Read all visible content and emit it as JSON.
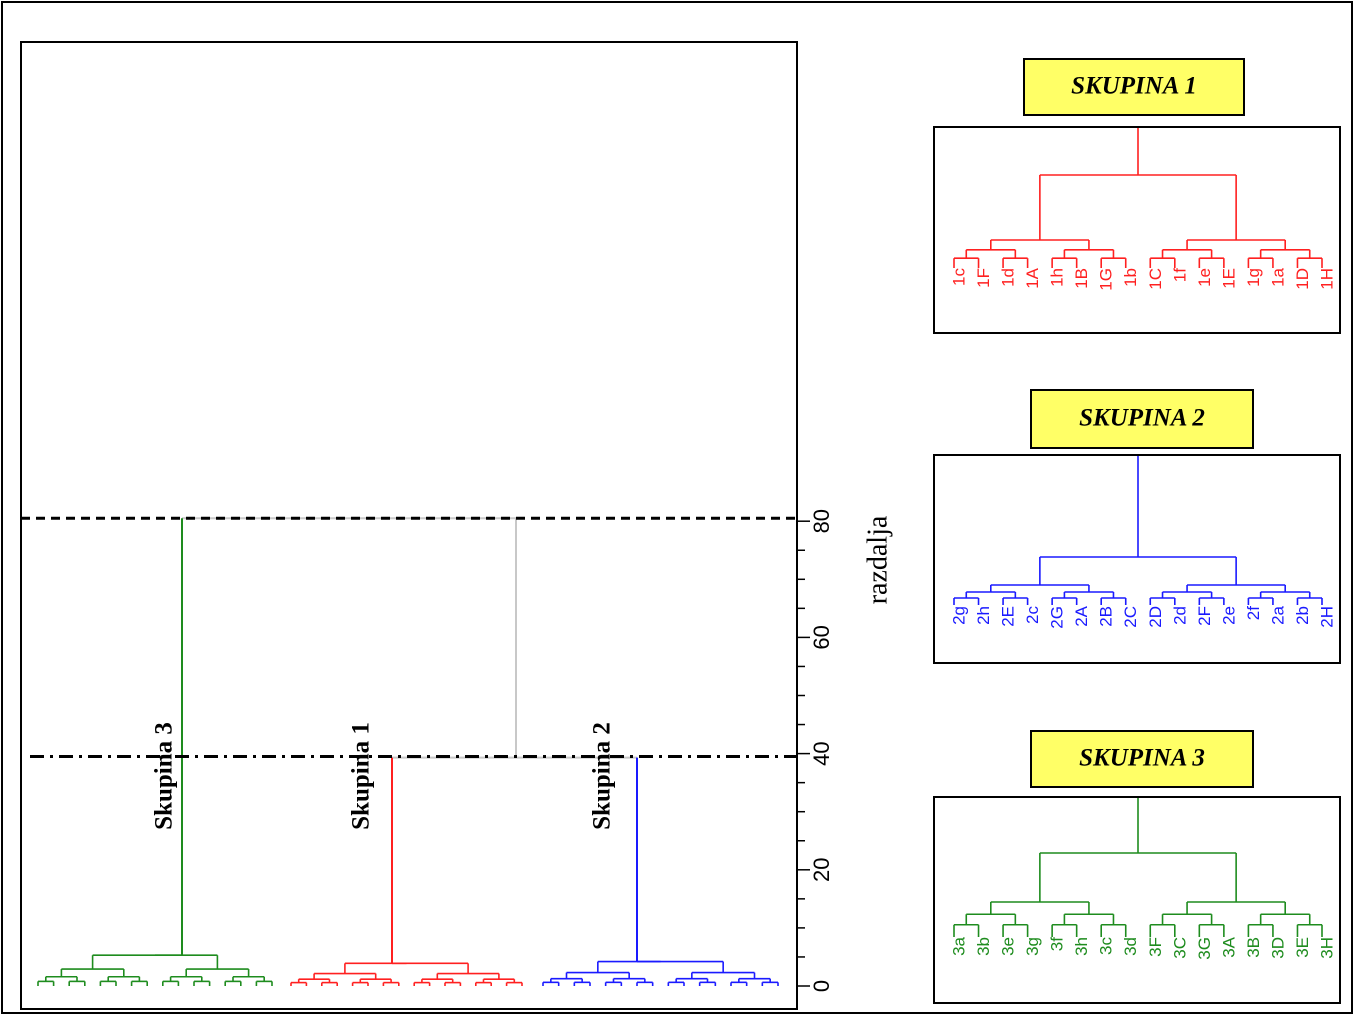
{
  "chart_data": {
    "type": "dendrogram",
    "y_axis": {
      "label": "razdalja",
      "ticks": [
        0,
        20,
        40,
        60,
        80
      ],
      "range": [
        0,
        81
      ]
    },
    "cut_lines": [
      {
        "style": "dashed",
        "value": 80.5
      },
      {
        "style": "dash-dot",
        "value": 39.5
      }
    ],
    "main": {
      "root_height": 80.5,
      "inner_merge_height": 39.3,
      "clusters": [
        {
          "label": "Skupina 3",
          "color": "#1e8c1e",
          "height": 5.3
        },
        {
          "label": "Skupina 1",
          "color": "#ff2020",
          "height": 3.9
        },
        {
          "label": "Skupina 2",
          "color": "#1a1aff",
          "height": 4.2
        }
      ]
    },
    "panels": [
      {
        "title": "SKUPINA 1",
        "color": "#ff2020",
        "leaves": [
          "1c",
          "1F",
          "1d",
          "1A",
          "1h",
          "1B",
          "1G",
          "1b",
          "1C",
          "1f",
          "1e",
          "1E",
          "1g",
          "1a",
          "1D",
          "1H"
        ]
      },
      {
        "title": "SKUPINA 2",
        "color": "#1a1aff",
        "leaves": [
          "2g",
          "2h",
          "2E",
          "2c",
          "2G",
          "2A",
          "2B",
          "2C",
          "2D",
          "2d",
          "2F",
          "2e",
          "2f",
          "2a",
          "2b",
          "2H"
        ]
      },
      {
        "title": "SKUPINA 3",
        "color": "#1e8c1e",
        "leaves": [
          "3a",
          "3b",
          "3e",
          "3g",
          "3f",
          "3h",
          "3c",
          "3d",
          "3F",
          "3C",
          "3G",
          "3A",
          "3B",
          "3D",
          "3E",
          "3H"
        ]
      }
    ],
    "colors": {
      "connector": "#c8c8c8",
      "highlight": "#ffff66"
    }
  }
}
